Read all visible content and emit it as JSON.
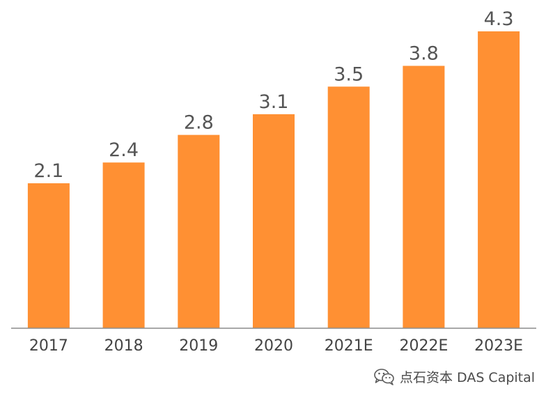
{
  "chart_data": {
    "type": "bar",
    "categories": [
      "2017",
      "2018",
      "2019",
      "2020",
      "2021E",
      "2022E",
      "2023E"
    ],
    "values": [
      2.1,
      2.4,
      2.8,
      3.1,
      3.5,
      3.8,
      4.3
    ],
    "data_labels": [
      "2.1",
      "2.4",
      "2.8",
      "3.1",
      "3.5",
      "3.8",
      "4.3"
    ],
    "title": "",
    "xlabel": "",
    "ylabel": "",
    "ylim": [
      0,
      4.3
    ],
    "bar_color": "#FF9033",
    "axis_color": "#8C8C8C",
    "grid": false,
    "legend": "none"
  },
  "watermark": {
    "icon": "wechat-icon",
    "text": "点石资本 DAS Capital"
  }
}
